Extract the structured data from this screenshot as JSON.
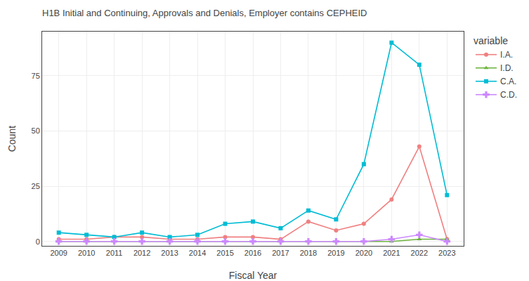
{
  "chart_data": {
    "type": "line",
    "title": "H1B Initial and Continuing, Approvals and Denials, Employer contains CEPHEID",
    "x_label": "Fiscal Year",
    "y_label": "Count",
    "legend_title": "variable",
    "x": [
      2009,
      2010,
      2011,
      2012,
      2013,
      2014,
      2015,
      2016,
      2017,
      2018,
      2019,
      2020,
      2021,
      2022,
      2023
    ],
    "series": [
      {
        "name": "I.A.",
        "color": "#F08080",
        "marker": "circle",
        "line_style": "solid",
        "values": [
          1,
          1,
          2,
          2,
          1,
          1,
          2,
          2,
          1,
          9,
          5,
          8,
          19,
          43,
          1
        ]
      },
      {
        "name": "I.D.",
        "color": "#6db33f",
        "marker": "triangle-up",
        "line_style": "solid",
        "values": [
          0,
          0,
          0,
          0,
          0,
          0,
          0,
          0,
          0,
          0,
          0,
          0,
          0,
          1,
          1
        ]
      },
      {
        "name": "C.A.",
        "color": "#00BCD4",
        "marker": "square",
        "line_style": "solid",
        "values": [
          4,
          3,
          2,
          4,
          2,
          3,
          8,
          9,
          6,
          14,
          10,
          35,
          90,
          80,
          21
        ]
      },
      {
        "name": "C.D.",
        "color": "#CC88FF",
        "marker": "cross",
        "line_style": "solid",
        "values": [
          0,
          0,
          0,
          0,
          0,
          0,
          0,
          0,
          0,
          0,
          0,
          0,
          1,
          3,
          0
        ]
      }
    ],
    "xlim": [
      2008.4,
      2023.6
    ],
    "xticks": [
      2009,
      2010,
      2011,
      2012,
      2013,
      2014,
      2015,
      2016,
      2017,
      2018,
      2019,
      2020,
      2021,
      2022,
      2023
    ],
    "ylim": [
      -2,
      95
    ],
    "yticks": [
      0,
      25,
      50,
      75
    ],
    "grid": true,
    "legend": "right"
  }
}
